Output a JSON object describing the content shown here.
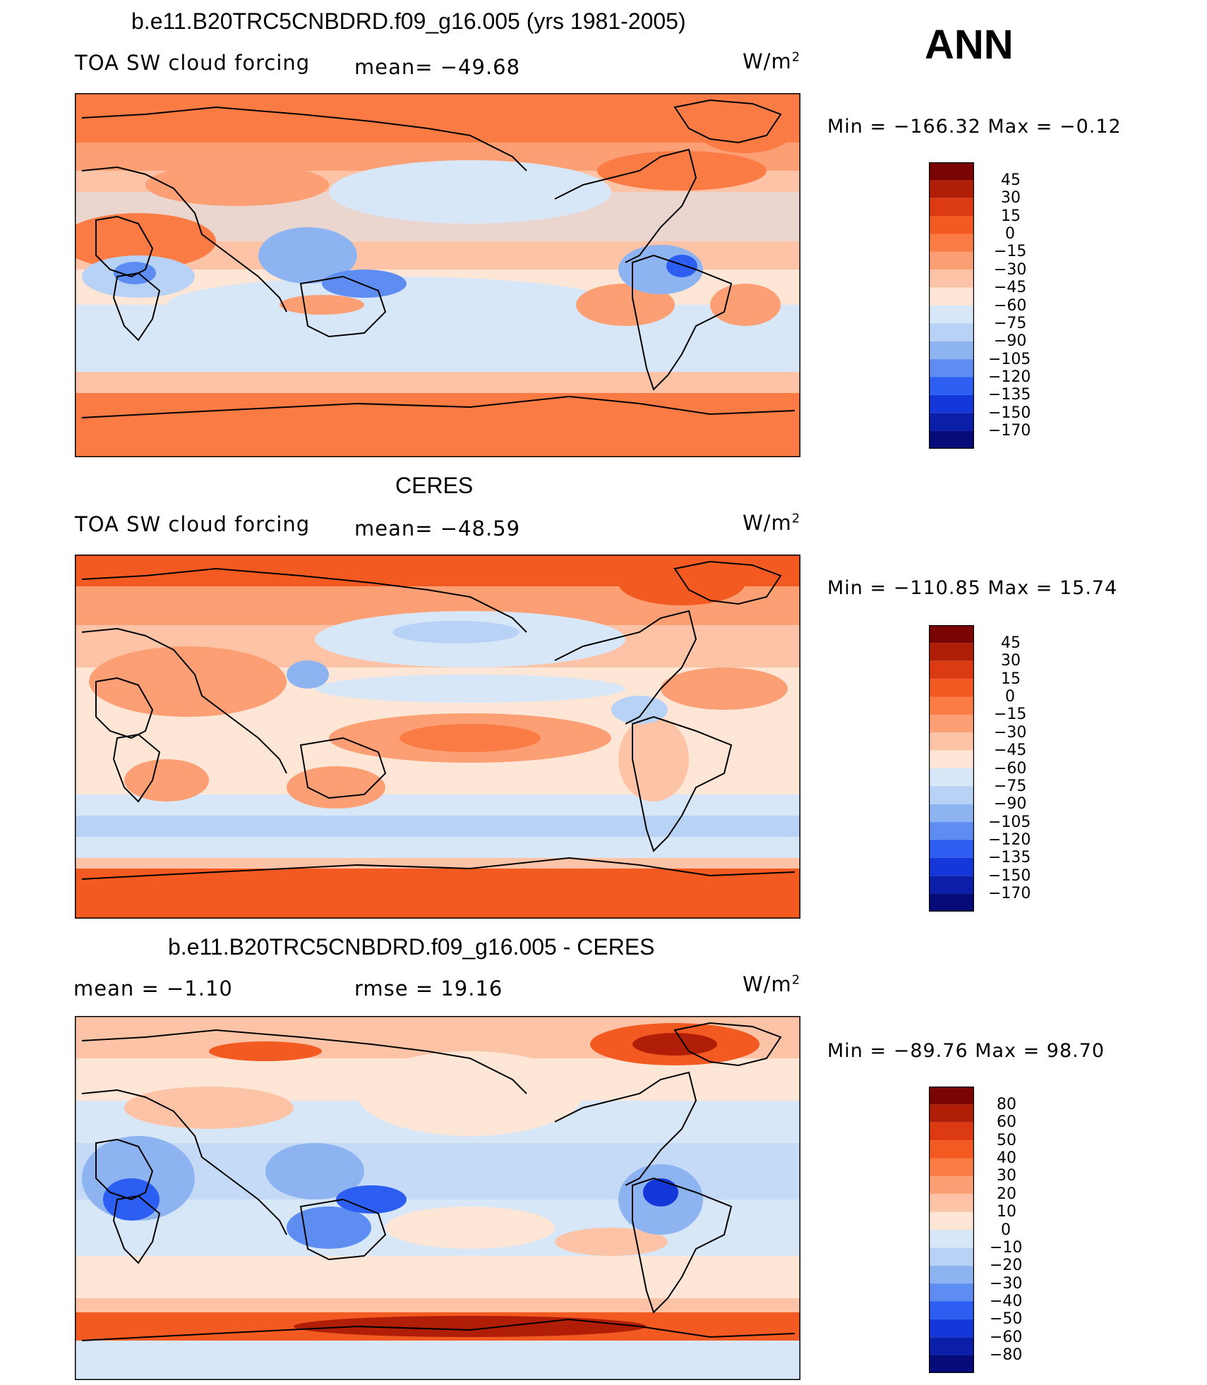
{
  "header": {
    "run_title": "b.e11.B20TRC5CNBDRD.f09_g16.005 (yrs 1981-2005)",
    "season": "ANN"
  },
  "panels": [
    {
      "title": "",
      "variable": "TOA SW cloud forcing",
      "stat": "mean=  −49.68",
      "unit_base": "W/m",
      "unit_exp": "2",
      "minmax": "Min  =  −166.32  Max  =    −0.12",
      "colorbar_labels": [
        "45",
        "30",
        "15",
        "0",
        "−15",
        "−30",
        "−45",
        "−60",
        "−75",
        "−90",
        "−105",
        "−120",
        "−135",
        "−150",
        "−170"
      ]
    },
    {
      "title": "CERES",
      "variable": "TOA SW cloud forcing",
      "stat": "mean=  −48.59",
      "unit_base": "W/m",
      "unit_exp": "2",
      "minmax": "Min  =  −110.85  Max  =    15.74",
      "colorbar_labels": [
        "45",
        "30",
        "15",
        "0",
        "−15",
        "−30",
        "−45",
        "−60",
        "−75",
        "−90",
        "−105",
        "−120",
        "−135",
        "−150",
        "−170"
      ]
    },
    {
      "title": "b.e11.B20TRC5CNBDRD.f09_g16.005 - CERES",
      "variable": "mean  =    −1.10",
      "stat": "rmse  =    19.16",
      "unit_base": "W/m",
      "unit_exp": "2",
      "minmax": "Min  =  −89.76  Max  =    98.70",
      "colorbar_labels": [
        "80",
        "60",
        "50",
        "40",
        "30",
        "20",
        "10",
        "0",
        "−10",
        "−20",
        "−30",
        "−40",
        "−50",
        "−60",
        "−80"
      ]
    }
  ],
  "colors": {
    "scale": [
      "#7a0403",
      "#b01e07",
      "#db3a12",
      "#f25a22",
      "#fb7b45",
      "#fc9f74",
      "#fcc3a6",
      "#fde6d6",
      "#d8e7f8",
      "#b7d2f5",
      "#8db4f1",
      "#5d8df0",
      "#2c5ef2",
      "#1337d8",
      "#0a1ea8",
      "#050b78"
    ],
    "ocean_base": "#fde6d6",
    "coast": "#000000"
  }
}
